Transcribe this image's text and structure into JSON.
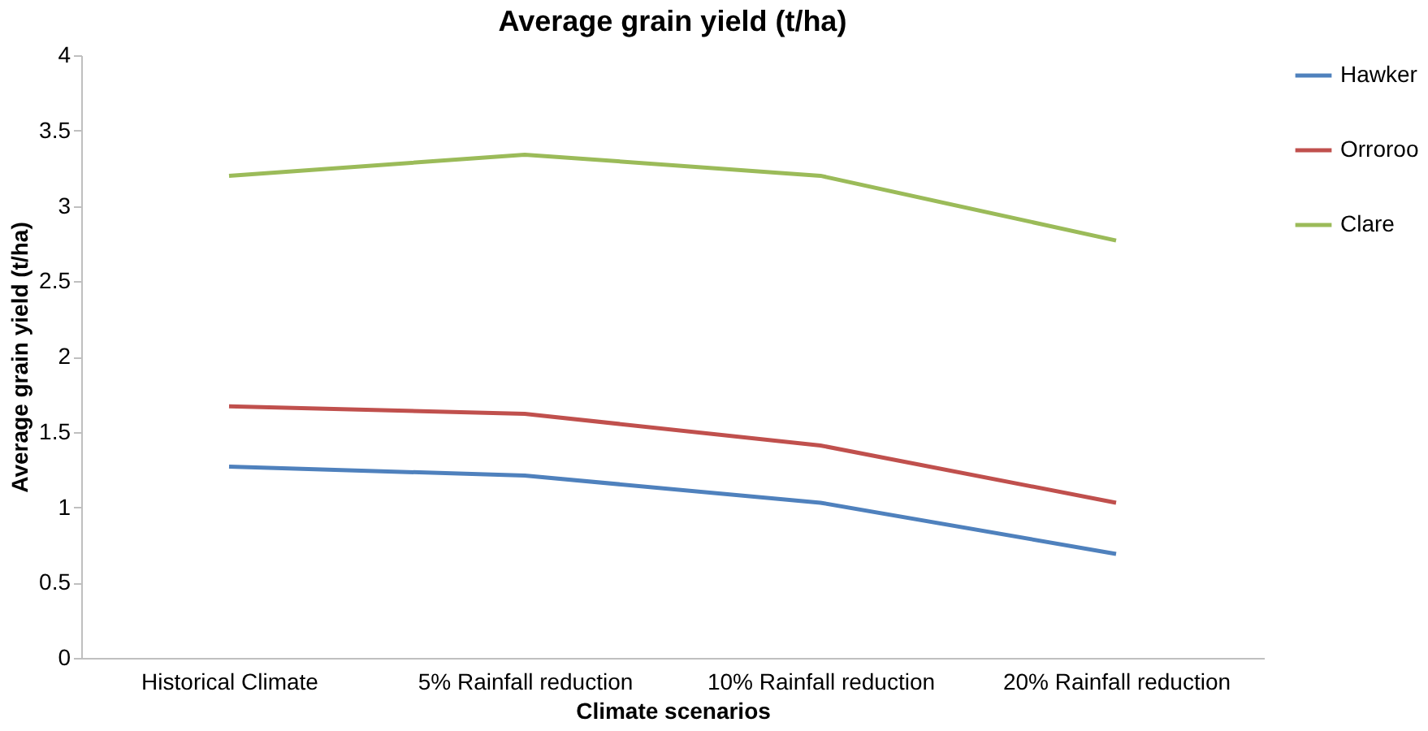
{
  "chart_data": {
    "type": "line",
    "title": "Average grain yield (t/ha)",
    "xlabel": "Climate scenarios",
    "ylabel": "Average grain yield (t/ha)",
    "categories": [
      "Historical Climate",
      "5% Rainfall reduction",
      "10% Rainfall reduction",
      "20% Rainfall reduction"
    ],
    "series": [
      {
        "name": "Hawker",
        "color": "#4f81bd",
        "values": [
          1.27,
          1.21,
          1.03,
          0.69
        ]
      },
      {
        "name": "Orroroo",
        "color": "#c0504d",
        "values": [
          1.67,
          1.62,
          1.41,
          1.03
        ]
      },
      {
        "name": "Clare",
        "color": "#9bbb59",
        "values": [
          3.2,
          3.34,
          3.2,
          2.77
        ]
      }
    ],
    "ylim": [
      0,
      4
    ],
    "yticks": [
      0,
      0.5,
      1,
      1.5,
      2,
      2.5,
      3,
      3.5,
      4
    ],
    "grid": false,
    "legend": "right",
    "marker": "none",
    "line_style": "solid"
  }
}
